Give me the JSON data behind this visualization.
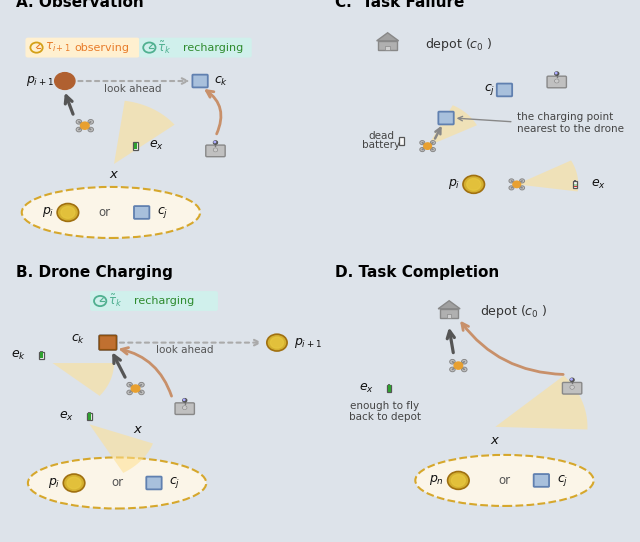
{
  "bg_color": "#dde3ea",
  "panel_bg": "#e4e9ef",
  "title_fontsize": 11,
  "label_fontsize": 9,
  "orange_color": "#E87C2A",
  "gold_color": "#D4A017",
  "green_color": "#2E8B2E",
  "teal_color": "#2E8B7A",
  "gray_color": "#555555",
  "arrow_color": "#C8906A",
  "dark_arrow": "#555555",
  "drone_color": "#E8A030",
  "charger_color": "#808080",
  "point_color": "#D4A017",
  "charge_point_color": "#7090C0",
  "depot_color": "#909090",
  "battery_green": "#30A030",
  "battery_red": "#D03030",
  "ellipse_color": "#D4A017",
  "highlight_orange": "#FFF0D0",
  "highlight_teal": "#D0F0EE",
  "panel_titles": [
    "A. Observation",
    "B. Drone Charging",
    "C.  Task Failure",
    "D. Task Completion"
  ]
}
